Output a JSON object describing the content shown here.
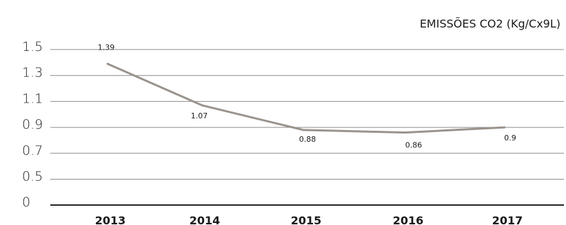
{
  "chart_data": {
    "type": "line",
    "title": "EMISSÕES CO2 (Kg/Cx9L)",
    "categories": [
      "2013",
      "2014",
      "2015",
      "2016",
      "2017"
    ],
    "y_ticks": [
      "1.5",
      "1.3",
      "1.1",
      "0.9",
      "0.7",
      "0.5",
      "0"
    ],
    "series": [
      {
        "values": [
          1.39,
          1.07,
          0.88,
          0.86,
          0.9
        ],
        "labels": [
          "1.39",
          "1.07",
          "0.88",
          "0.86",
          "0.9"
        ],
        "color": "#9a938c"
      }
    ],
    "grid": true,
    "legend": "none"
  }
}
